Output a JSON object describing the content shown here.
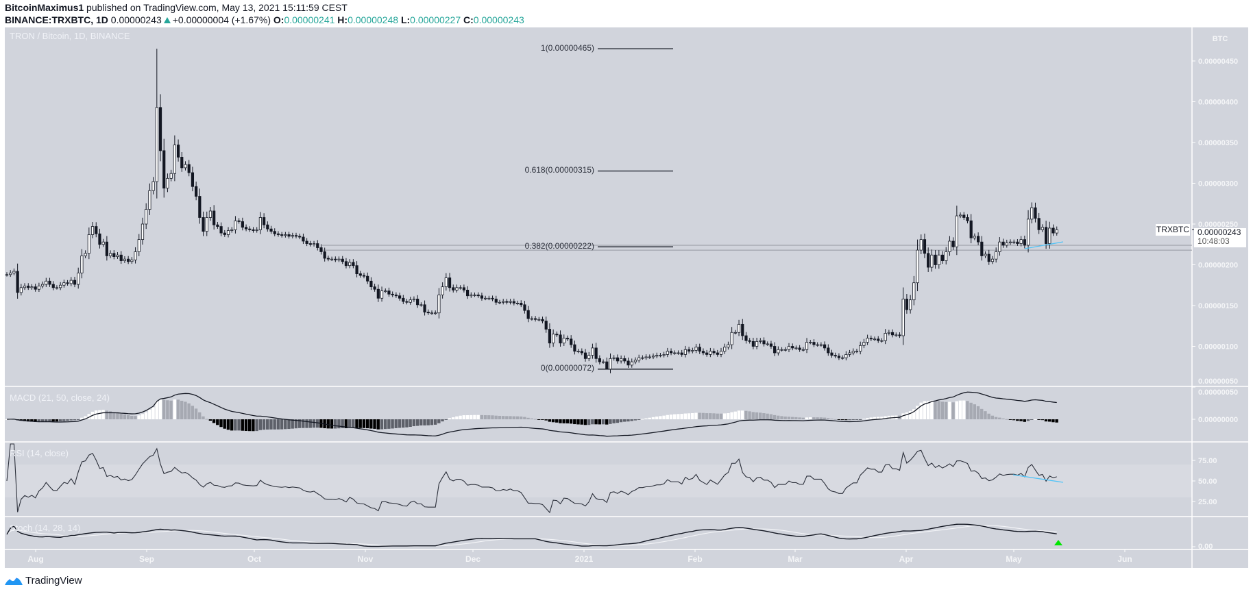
{
  "header": {
    "author": "BitcoinMaximus1",
    "published": "published on TradingView.com, May 13, 2021 15:11:59 CEST",
    "symbol": "BINANCE:TRXBTC, 1D",
    "last": "0.00000243",
    "change": "+0.00000004 (+1.67%)",
    "o_label": "O:",
    "o": "0.00000241",
    "h_label": "H:",
    "h": "0.00000248",
    "l_label": "L:",
    "l": "0.00000227",
    "c_label": "C:",
    "c": "0.00000243"
  },
  "colors": {
    "background": "#d1d4dc",
    "bull_body": "#ffffff",
    "bear_body": "#131722",
    "teal": "#26a69a",
    "trendline": "#4fc3f7",
    "hist_pos_up": "#ffffff",
    "hist_pos_down": "#a6a9b2",
    "hist_neg_down": "#000000",
    "hist_neg_up": "#5d6069"
  },
  "panes": {
    "main_title": "TRON / Bitcoin, 1D, BINANCE",
    "macd_title": "MACD (21, 50, close, 24)",
    "rsi_title": "RSI (14, close)",
    "stoch_title": "Stoch (14, 28, 14)"
  },
  "price_tag": {
    "symbol": "TRXBTC",
    "price": "0.00000243",
    "countdown": "10:48:03"
  },
  "footer": {
    "brand": "TradingView"
  },
  "chart_data": {
    "type": "candlestick",
    "interval": "1D",
    "currency_label": "BTC",
    "x_ticks": [
      "Aug",
      "Sep",
      "Oct",
      "Nov",
      "Dec",
      "2021",
      "Feb",
      "Mar",
      "Apr",
      "May",
      "Jun"
    ],
    "y_ticks": [
      {
        "label": "0.00000450",
        "value": 4.5e-06
      },
      {
        "label": "0.00000400",
        "value": 4e-06
      },
      {
        "label": "0.00000350",
        "value": 3.5e-06
      },
      {
        "label": "0.00000300",
        "value": 3e-06
      },
      {
        "label": "0.00000250",
        "value": 2.5e-06
      },
      {
        "label": "0.00000200",
        "value": 2e-06
      },
      {
        "label": "0.00000150",
        "value": 1.5e-06
      },
      {
        "label": "0.00000100",
        "value": 1e-06
      },
      {
        "label": "0.00000050",
        "value": 5e-07
      }
    ],
    "period_high": 4.65e-06,
    "period_low": 7.2e-07,
    "closes": [
      1.88e-06,
      1.9e-06,
      1.92e-06,
      1.66e-06,
      1.72e-06,
      1.74e-06,
      1.72e-06,
      1.73e-06,
      1.7e-06,
      1.74e-06,
      1.76e-06,
      1.8e-06,
      1.76e-06,
      1.72e-06,
      1.72e-06,
      1.75e-06,
      1.78e-06,
      1.77e-06,
      1.81e-06,
      1.76e-06,
      1.9e-06,
      2.11e-06,
      2.14e-06,
      2.37e-06,
      2.47e-06,
      2.38e-06,
      2.25e-06,
      2.28e-06,
      2.11e-06,
      2.14e-06,
      2.1e-06,
      2.12e-06,
      2.05e-06,
      2.07e-06,
      2.04e-06,
      2.06e-06,
      2.16e-06,
      2.31e-06,
      2.5e-06,
      2.68e-06,
      2.91e-06,
      3.02e-06,
      3.93e-06,
      3.4e-06,
      2.94e-06,
      3.06e-06,
      3.12e-06,
      3.47e-06,
      3.32e-06,
      3.19e-06,
      3.23e-06,
      3.13e-06,
      2.96e-06,
      2.84e-06,
      2.58e-06,
      2.41e-06,
      2.58e-06,
      2.66e-06,
      2.49e-06,
      2.47e-06,
      2.39e-06,
      2.37e-06,
      2.42e-06,
      2.43e-06,
      2.54e-06,
      2.53e-06,
      2.46e-06,
      2.44e-06,
      2.43e-06,
      2.42e-06,
      2.43e-06,
      2.58e-06,
      2.49e-06,
      2.44e-06,
      2.41e-06,
      2.38e-06,
      2.37e-06,
      2.36e-06,
      2.37e-06,
      2.35e-06,
      2.36e-06,
      2.35e-06,
      2.34e-06,
      2.29e-06,
      2.26e-06,
      2.25e-06,
      2.26e-06,
      2.21e-06,
      2.16e-06,
      2.08e-06,
      2.07e-06,
      2.07e-06,
      2.06e-06,
      2.07e-06,
      2.04e-06,
      1.99e-06,
      2.03e-06,
      1.99e-06,
      1.89e-06,
      1.87e-06,
      1.86e-06,
      1.8e-06,
      1.73e-06,
      1.7e-06,
      1.59e-06,
      1.68e-06,
      1.68e-06,
      1.64e-06,
      1.63e-06,
      1.62e-06,
      1.59e-06,
      1.55e-06,
      1.54e-06,
      1.57e-06,
      1.58e-06,
      1.51e-06,
      1.51e-06,
      1.42e-06,
      1.41e-06,
      1.41e-06,
      1.41e-06,
      1.63e-06,
      1.73e-06,
      1.84e-06,
      1.72e-06,
      1.69e-06,
      1.72e-06,
      1.72e-06,
      1.69e-06,
      1.62e-06,
      1.63e-06,
      1.63e-06,
      1.62e-06,
      1.59e-06,
      1.59e-06,
      1.59e-06,
      1.58e-06,
      1.54e-06,
      1.54e-06,
      1.55e-06,
      1.54e-06,
      1.55e-06,
      1.53e-06,
      1.53e-06,
      1.51e-06,
      1.44e-06,
      1.34e-06,
      1.34e-06,
      1.33e-06,
      1.33e-06,
      1.31e-06,
      1.21e-06,
      1.04e-06,
      1.15e-06,
      1.14e-06,
      1.04e-06,
      1.1e-06,
      1.09e-06,
      1.02e-06,
      9.4e-07,
      9.4e-07,
      9.2e-07,
      8.5e-07,
      8.9e-07,
      9.8e-07,
      8.5e-07,
      8.1e-07,
      8.1e-07,
      7.2e-07,
      8.5e-07,
      8.6e-07,
      8.2e-07,
      8.5e-07,
      8.2e-07,
      7.7e-07,
      8.1e-07,
      8.3e-07,
      8.6e-07,
      8.6e-07,
      8.7e-07,
      8.7e-07,
      8.8e-07,
      8.9e-07,
      8.9e-07,
      9e-07,
      9.4e-07,
      9.2e-07,
      9.2e-07,
      9.2e-07,
      9e-07,
      9.6e-07,
      9.4e-07,
      9.5e-07,
      9.9e-07,
      9.4e-07,
      9.2e-07,
      9e-07,
      9.4e-07,
      9.2e-07,
      9e-07,
      9.4e-07,
      9.9e-07,
      1.02e-06,
      1.17e-06,
      1.17e-06,
      1.27e-06,
      1.13e-06,
      1.07e-06,
      1.06e-06,
      1e-06,
      1.06e-06,
      1.07e-06,
      1.03e-06,
      1.03e-06,
      1e-06,
      9.2e-07,
      9.6e-07,
      9.6e-07,
      9.6e-07,
      1e-06,
      9.8e-07,
      9.8e-07,
      9.6e-07,
      9.6e-07,
      1.05e-06,
      1.05e-06,
      1.02e-06,
      1.02e-06,
      1.02e-06,
      9.8e-07,
      9.2e-07,
      8.9e-07,
      8.8e-07,
      8.6e-07,
      8.6e-07,
      9e-07,
      9.2e-07,
      9.4e-07,
      9.4e-07,
      1.01e-06,
      1.05e-06,
      1.1e-06,
      1.09e-06,
      1.09e-06,
      1.07e-06,
      1.07e-06,
      1.16e-06,
      1.17e-06,
      1.14e-06,
      1.14e-06,
      1.13e-06,
      1.58e-06,
      1.45e-06,
      1.57e-06,
      1.78e-06,
      2.18e-06,
      2.31e-06,
      2.14e-06,
      1.97e-06,
      2.12e-06,
      2e-06,
      2.12e-06,
      2.05e-06,
      2.16e-06,
      2.29e-06,
      2.22e-06,
      2.6e-06,
      2.61e-06,
      2.58e-06,
      2.54e-06,
      2.33e-06,
      2.35e-06,
      2.28e-06,
      2.11e-06,
      2.13e-06,
      2.04e-06,
      2.07e-06,
      2.16e-06,
      2.28e-06,
      2.24e-06,
      2.27e-06,
      2.28e-06,
      2.28e-06,
      2.26e-06,
      2.31e-06,
      2.24e-06,
      2.56e-06,
      2.7e-06,
      2.57e-06,
      2.43e-06,
      2.46e-06,
      2.26e-06,
      2.45e-06,
      2.39e-06,
      2.43e-06
    ],
    "fib_retracement": [
      {
        "ratio": 1,
        "price": 4.65e-06,
        "label": "1(0.00000465)"
      },
      {
        "ratio": 0.618,
        "price": 3.15e-06,
        "label": "0.618(0.00000315)"
      },
      {
        "ratio": 0.382,
        "price": 2.22e-06,
        "label": "0.382(0.00000222)"
      },
      {
        "ratio": 0,
        "price": 7.2e-07,
        "label": "0(0.00000072)"
      }
    ],
    "support_zone": [
      2.18e-06,
      2.24e-06
    ],
    "macd": {
      "fast": 21,
      "slow": 50,
      "signal": 24,
      "y_ticks": [
        {
          "label": "0.00000050",
          "value": 5e-07
        },
        {
          "label": "0.00000000",
          "value": 0
        }
      ]
    },
    "rsi": {
      "length": 14,
      "band": [
        30,
        70
      ],
      "y_ticks": [
        {
          "label": "75.00",
          "value": 75
        },
        {
          "label": "50.00",
          "value": 50
        },
        {
          "label": "25.00",
          "value": 25
        }
      ]
    },
    "stoch": {
      "k": 14,
      "k_smooth": 28,
      "d": 14,
      "y_ticks": [
        {
          "label": "0.00",
          "value": 0
        }
      ]
    }
  }
}
